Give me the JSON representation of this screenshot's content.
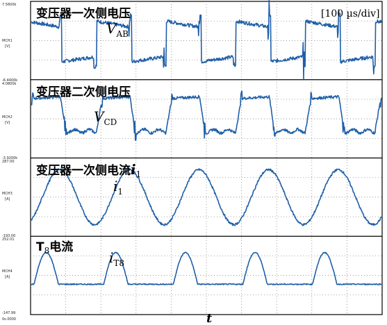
{
  "chart_data": {
    "type": "line",
    "timebase": "[100 µs/div]",
    "xlabel": "t",
    "origin_label": "0s.0000",
    "color": "#1f5fa8",
    "panels": [
      {
        "id": "vab",
        "title": "变压器一次侧电压",
        "symbol": "V",
        "subscript": "AB",
        "channel": "MCH1",
        "unit": "[V]",
        "top_label": "7.5600k",
        "bottom_label": "-6.4400k",
        "ylim": [
          -6440,
          7560
        ],
        "waveform": "primary_voltage"
      },
      {
        "id": "vcd",
        "title": "变压器二次侧电压",
        "symbol": "V",
        "subscript": "CD",
        "channel": "MCH2",
        "unit": "[V]",
        "top_label": "4.0800k",
        "bottom_label": "-3.9200k",
        "ylim": [
          -3920,
          4080
        ],
        "waveform": "secondary_voltage"
      },
      {
        "id": "i1",
        "title": "变压器一次侧电流",
        "title_suffix": "i",
        "title_suffix_sub": "1",
        "symbol": "i",
        "subscript": "1",
        "channel": "MCH3",
        "unit": "[A]",
        "top_label": "287.00",
        "bottom_label": "-193.00",
        "ylim": [
          -193,
          287
        ],
        "waveform": "primary_current"
      },
      {
        "id": "it8",
        "title": "T",
        "title_sub": "8",
        "title_rest": "电流",
        "symbol": "i",
        "subscript": "T8",
        "channel": "MCH4",
        "unit": "[A]",
        "top_label": "252.01",
        "bottom_label": "-147.99",
        "ylim": [
          -147.99,
          252.01
        ],
        "waveform": "switch_current"
      }
    ]
  }
}
